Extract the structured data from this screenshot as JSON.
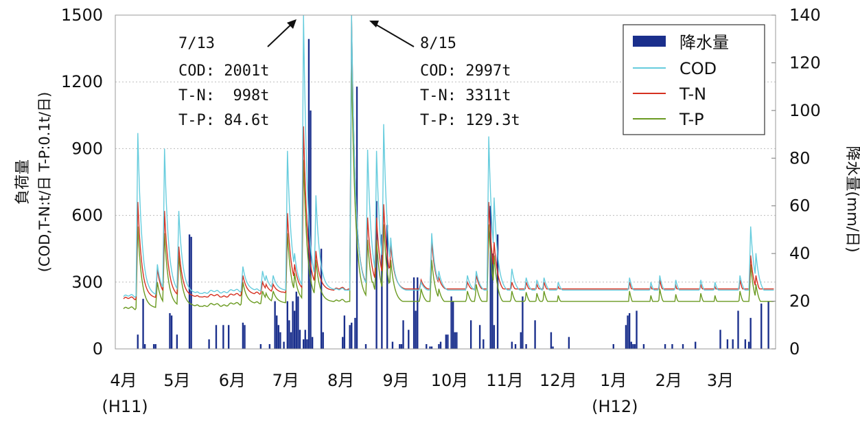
{
  "chart_data": {
    "type": "bar+line",
    "ylabel_left_line1": "負荷量",
    "ylabel_left_line2": "(COD,T-N:t/日 T-P:0.1t/日)",
    "ylabel_right": "降水量(mm/日)",
    "ylim_left": [
      0,
      1500
    ],
    "ylim_right": [
      0,
      140
    ],
    "yticks_left": [
      "0",
      "300",
      "600",
      "900",
      "1200",
      "1500"
    ],
    "yticks_right": [
      "0",
      "20",
      "40",
      "60",
      "80",
      "100",
      "120",
      "140"
    ],
    "grid": "horizontal dotted",
    "legend_position": "top-right",
    "x_months": [
      {
        "label": "4月",
        "sub": "(H11)",
        "day": 0
      },
      {
        "label": "5月",
        "sub": "",
        "day": 30
      },
      {
        "label": "6月",
        "sub": "",
        "day": 61
      },
      {
        "label": "7月",
        "sub": "",
        "day": 91
      },
      {
        "label": "8月",
        "sub": "",
        "day": 122
      },
      {
        "label": "9月",
        "sub": "",
        "day": 153
      },
      {
        "label": "10月",
        "sub": "",
        "day": 183
      },
      {
        "label": "11月",
        "sub": "",
        "day": 214
      },
      {
        "label": "12月",
        "sub": "",
        "day": 244
      },
      {
        "label": "1月",
        "sub": "(H12)",
        "day": 275
      },
      {
        "label": "2月",
        "sub": "",
        "day": 306
      },
      {
        "label": "3月",
        "sub": "",
        "day": 335
      }
    ],
    "series": [
      {
        "name": "降水量",
        "kind": "bar",
        "axis": "right",
        "color": "#1a2f8c",
        "points": [
          [
            8,
            6
          ],
          [
            11,
            21
          ],
          [
            12,
            2
          ],
          [
            17,
            2
          ],
          [
            18,
            2
          ],
          [
            26,
            15
          ],
          [
            27,
            14
          ],
          [
            30,
            6
          ],
          [
            37,
            48
          ],
          [
            38,
            47
          ],
          [
            48,
            4
          ],
          [
            52,
            10
          ],
          [
            56,
            10
          ],
          [
            59,
            10
          ],
          [
            67,
            11
          ],
          [
            68,
            10
          ],
          [
            77,
            2
          ],
          [
            82,
            2
          ],
          [
            85,
            20
          ],
          [
            86,
            14
          ],
          [
            87,
            10
          ],
          [
            88,
            7
          ],
          [
            90,
            3
          ],
          [
            92,
            20
          ],
          [
            93,
            12
          ],
          [
            94,
            7
          ],
          [
            95,
            20
          ],
          [
            96,
            16
          ],
          [
            97,
            24
          ],
          [
            98,
            22
          ],
          [
            99,
            8
          ],
          [
            101,
            4
          ],
          [
            102,
            8
          ],
          [
            103,
            4
          ],
          [
            104,
            130
          ],
          [
            105,
            100
          ],
          [
            106,
            5
          ],
          [
            111,
            42
          ],
          [
            112,
            7
          ],
          [
            123,
            5
          ],
          [
            124,
            14
          ],
          [
            127,
            10
          ],
          [
            128,
            11
          ],
          [
            130,
            13
          ],
          [
            131,
            110
          ],
          [
            136,
            2
          ],
          [
            142,
            62
          ],
          [
            145,
            48
          ],
          [
            148,
            52
          ],
          [
            151,
            3
          ],
          [
            155,
            2
          ],
          [
            156,
            2
          ],
          [
            157,
            12
          ],
          [
            160,
            8
          ],
          [
            163,
            30
          ],
          [
            164,
            16
          ],
          [
            165,
            30
          ],
          [
            170,
            2
          ],
          [
            172,
            1
          ],
          [
            173,
            1
          ],
          [
            177,
            2
          ],
          [
            178,
            3
          ],
          [
            181,
            6
          ],
          [
            182,
            6
          ],
          [
            184,
            22
          ],
          [
            185,
            20
          ],
          [
            186,
            7
          ],
          [
            187,
            7
          ],
          [
            195,
            12
          ],
          [
            200,
            10
          ],
          [
            202,
            4
          ],
          [
            206,
            60
          ],
          [
            207,
            40
          ],
          [
            208,
            10
          ],
          [
            210,
            48
          ],
          [
            218,
            3
          ],
          [
            220,
            2
          ],
          [
            223,
            7
          ],
          [
            224,
            22
          ],
          [
            226,
            2
          ],
          [
            231,
            12
          ],
          [
            240,
            7
          ],
          [
            241,
            1
          ],
          [
            250,
            5
          ],
          [
            275,
            2
          ],
          [
            282,
            10
          ],
          [
            283,
            14
          ],
          [
            284,
            15
          ],
          [
            285,
            3
          ],
          [
            286,
            2
          ],
          [
            287,
            2
          ],
          [
            288,
            16
          ],
          [
            292,
            2
          ],
          [
            304,
            2
          ],
          [
            308,
            2
          ],
          [
            314,
            2
          ],
          [
            321,
            3
          ],
          [
            335,
            8
          ],
          [
            339,
            4
          ],
          [
            342,
            4
          ],
          [
            345,
            16
          ],
          [
            349,
            4
          ],
          [
            351,
            3
          ],
          [
            352,
            13
          ],
          [
            358,
            19
          ],
          [
            362,
            20
          ]
        ]
      },
      {
        "name": "COD",
        "kind": "line",
        "axis": "left",
        "color": "#66ccdd",
        "peaks": [
          [
            8,
            970
          ],
          [
            19,
            380
          ],
          [
            23,
            900
          ],
          [
            31,
            620
          ],
          [
            67,
            370
          ],
          [
            78,
            350
          ],
          [
            80,
            330
          ],
          [
            84,
            330
          ],
          [
            92,
            890
          ],
          [
            96,
            430
          ],
          [
            101,
            1500
          ],
          [
            108,
            690
          ],
          [
            128,
            1500
          ],
          [
            137,
            895
          ],
          [
            140,
            420
          ],
          [
            142,
            890
          ],
          [
            146,
            1010
          ],
          [
            150,
            500
          ],
          [
            167,
            300
          ],
          [
            173,
            520
          ],
          [
            177,
            350
          ],
          [
            193,
            330
          ],
          [
            198,
            350
          ],
          [
            205,
            955
          ],
          [
            208,
            680
          ],
          [
            218,
            360
          ],
          [
            226,
            320
          ],
          [
            232,
            310
          ],
          [
            236,
            320
          ],
          [
            244,
            300
          ],
          [
            284,
            320
          ],
          [
            296,
            300
          ],
          [
            301,
            330
          ],
          [
            310,
            310
          ],
          [
            324,
            310
          ],
          [
            332,
            300
          ],
          [
            346,
            330
          ],
          [
            352,
            550
          ],
          [
            355,
            430
          ]
        ]
      },
      {
        "name": "T-N",
        "kind": "line",
        "axis": "left",
        "color": "#d53020",
        "peaks": [
          [
            8,
            660
          ],
          [
            19,
            360
          ],
          [
            23,
            620
          ],
          [
            31,
            460
          ],
          [
            67,
            330
          ],
          [
            78,
            300
          ],
          [
            80,
            290
          ],
          [
            84,
            290
          ],
          [
            92,
            610
          ],
          [
            96,
            380
          ],
          [
            101,
            1000
          ],
          [
            108,
            440
          ],
          [
            128,
            1500
          ],
          [
            137,
            590
          ],
          [
            140,
            350
          ],
          [
            142,
            590
          ],
          [
            146,
            650
          ],
          [
            150,
            470
          ],
          [
            167,
            310
          ],
          [
            173,
            480
          ],
          [
            177,
            320
          ],
          [
            193,
            300
          ],
          [
            198,
            330
          ],
          [
            205,
            660
          ],
          [
            208,
            480
          ],
          [
            218,
            300
          ],
          [
            226,
            300
          ],
          [
            232,
            290
          ],
          [
            236,
            300
          ],
          [
            244,
            280
          ],
          [
            284,
            300
          ],
          [
            296,
            280
          ],
          [
            301,
            310
          ],
          [
            310,
            285
          ],
          [
            324,
            290
          ],
          [
            332,
            280
          ],
          [
            346,
            310
          ],
          [
            352,
            420
          ],
          [
            355,
            330
          ]
        ]
      },
      {
        "name": "T-P",
        "kind": "line",
        "axis": "left",
        "color": "#6a9a20",
        "peaks": [
          [
            8,
            550
          ],
          [
            19,
            300
          ],
          [
            23,
            520
          ],
          [
            31,
            420
          ],
          [
            67,
            300
          ],
          [
            78,
            260
          ],
          [
            80,
            250
          ],
          [
            84,
            260
          ],
          [
            92,
            520
          ],
          [
            96,
            340
          ],
          [
            101,
            850
          ],
          [
            108,
            400
          ],
          [
            128,
            1290
          ],
          [
            137,
            490
          ],
          [
            140,
            300
          ],
          [
            142,
            490
          ],
          [
            146,
            560
          ],
          [
            150,
            400
          ],
          [
            167,
            270
          ],
          [
            173,
            400
          ],
          [
            177,
            270
          ],
          [
            193,
            260
          ],
          [
            198,
            290
          ],
          [
            205,
            560
          ],
          [
            208,
            420
          ],
          [
            218,
            260
          ],
          [
            226,
            255
          ],
          [
            232,
            250
          ],
          [
            236,
            260
          ],
          [
            244,
            240
          ],
          [
            284,
            260
          ],
          [
            296,
            240
          ],
          [
            301,
            270
          ],
          [
            310,
            245
          ],
          [
            324,
            250
          ],
          [
            332,
            240
          ],
          [
            346,
            260
          ],
          [
            352,
            380
          ],
          [
            355,
            290
          ]
        ]
      }
    ],
    "baselines": {
      "COD": [
        [
          0,
          235
        ],
        [
          60,
          260
        ],
        [
          125,
          265
        ],
        [
          170,
          255
        ],
        [
          240,
          245
        ],
        [
          280,
          235
        ],
        [
          310,
          230
        ],
        [
          364,
          240
        ]
      ],
      "T-N": [
        [
          0,
          225
        ],
        [
          60,
          240
        ],
        [
          125,
          270
        ],
        [
          170,
          260
        ],
        [
          240,
          235
        ],
        [
          280,
          220
        ],
        [
          310,
          215
        ],
        [
          364,
          225
        ]
      ],
      "T-P": [
        [
          0,
          180
        ],
        [
          60,
          200
        ],
        [
          125,
          215
        ],
        [
          170,
          195
        ],
        [
          240,
          180
        ],
        [
          280,
          165
        ],
        [
          310,
          170
        ],
        [
          364,
          175
        ]
      ]
    },
    "annotations": [
      {
        "id": "jul13",
        "date": "7/13",
        "lines": [
          "COD: 2001t",
          "T-N:  998t",
          "T-P: 84.6t"
        ]
      },
      {
        "id": "aug15",
        "date": "8/15",
        "lines": [
          "COD: 2997t",
          "T-N: 3311t",
          "T-P: 129.3t"
        ]
      }
    ]
  }
}
